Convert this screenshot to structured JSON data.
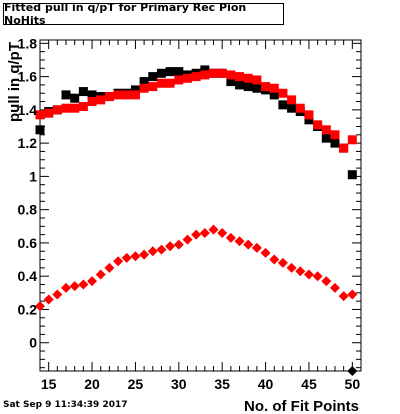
{
  "header": {
    "title": "Fitted pull in q/pT for Primary Rec Pion NoHits"
  },
  "footer": {
    "timestamp": "Sat Sep  9 11:34:39 2017"
  },
  "chart_data": {
    "type": "scatter",
    "title": "Fitted pull in q/pT for Primary Rec Pion NoHits",
    "xlabel": "No. of Fit Points",
    "ylabel": "pull in q/pT",
    "xlim": [
      14,
      51
    ],
    "ylim": [
      -0.17,
      1.82
    ],
    "xticks": [
      15,
      20,
      25,
      30,
      35,
      40,
      45,
      50
    ],
    "yticks": [
      0,
      0.2,
      0.4,
      0.6,
      0.8,
      1,
      1.2,
      1.4,
      1.6,
      1.8
    ],
    "ytick_labels": [
      "0",
      "0.2",
      "0.4",
      "0.6",
      "0.8",
      "1",
      "1.2",
      "1.4",
      "1.6",
      "1.8"
    ],
    "grid": false,
    "series": [
      {
        "marker": "square",
        "color": "#000000",
        "x": [
          14,
          15,
          16,
          17,
          18,
          19,
          20,
          21,
          22,
          23,
          24,
          25,
          26,
          27,
          28,
          29,
          30,
          31,
          32,
          33,
          34,
          35,
          36,
          37,
          38,
          39,
          40,
          41,
          42,
          43,
          44,
          45,
          46,
          47,
          48,
          49,
          50
        ],
        "y": [
          1.28,
          1.39,
          1.4,
          1.49,
          1.47,
          1.51,
          1.49,
          1.48,
          1.48,
          1.5,
          1.5,
          1.52,
          1.57,
          1.6,
          1.62,
          1.63,
          1.63,
          1.61,
          1.62,
          1.64,
          1.62,
          1.62,
          1.57,
          1.55,
          1.54,
          1.53,
          1.52,
          1.49,
          1.43,
          1.41,
          1.39,
          1.34,
          1.3,
          1.23,
          1.2,
          1.17,
          1.01
        ]
      },
      {
        "marker": "square",
        "color": "#ff0000",
        "x": [
          14,
          15,
          16,
          17,
          18,
          19,
          20,
          21,
          22,
          23,
          24,
          25,
          26,
          27,
          28,
          29,
          30,
          31,
          32,
          33,
          34,
          35,
          36,
          37,
          38,
          39,
          40,
          41,
          42,
          43,
          44,
          45,
          46,
          47,
          48,
          49,
          50
        ],
        "y": [
          1.37,
          1.38,
          1.4,
          1.41,
          1.41,
          1.42,
          1.45,
          1.46,
          1.48,
          1.49,
          1.49,
          1.49,
          1.53,
          1.54,
          1.56,
          1.56,
          1.58,
          1.59,
          1.6,
          1.61,
          1.62,
          1.62,
          1.61,
          1.6,
          1.59,
          1.58,
          1.54,
          1.53,
          1.5,
          1.46,
          1.41,
          1.37,
          1.31,
          1.28,
          1.25,
          1.17,
          1.22
        ]
      },
      {
        "marker": "diamond",
        "color": "#ff0000",
        "x": [
          14,
          15,
          16,
          17,
          18,
          19,
          20,
          21,
          22,
          23,
          24,
          25,
          26,
          27,
          28,
          29,
          30,
          31,
          32,
          33,
          34,
          35,
          36,
          37,
          38,
          39,
          40,
          41,
          42,
          43,
          44,
          45,
          46,
          47,
          48,
          49,
          50
        ],
        "y": [
          0.22,
          0.26,
          0.29,
          0.33,
          0.34,
          0.35,
          0.37,
          0.41,
          0.45,
          0.49,
          0.51,
          0.52,
          0.53,
          0.55,
          0.56,
          0.58,
          0.59,
          0.62,
          0.65,
          0.66,
          0.68,
          0.66,
          0.63,
          0.61,
          0.59,
          0.57,
          0.54,
          0.5,
          0.48,
          0.45,
          0.43,
          0.41,
          0.4,
          0.37,
          0.33,
          0.28,
          0.29
        ]
      }
    ],
    "markers_below_range": [
      {
        "x": 50,
        "marker": "diamond",
        "color": "#000000"
      }
    ]
  }
}
